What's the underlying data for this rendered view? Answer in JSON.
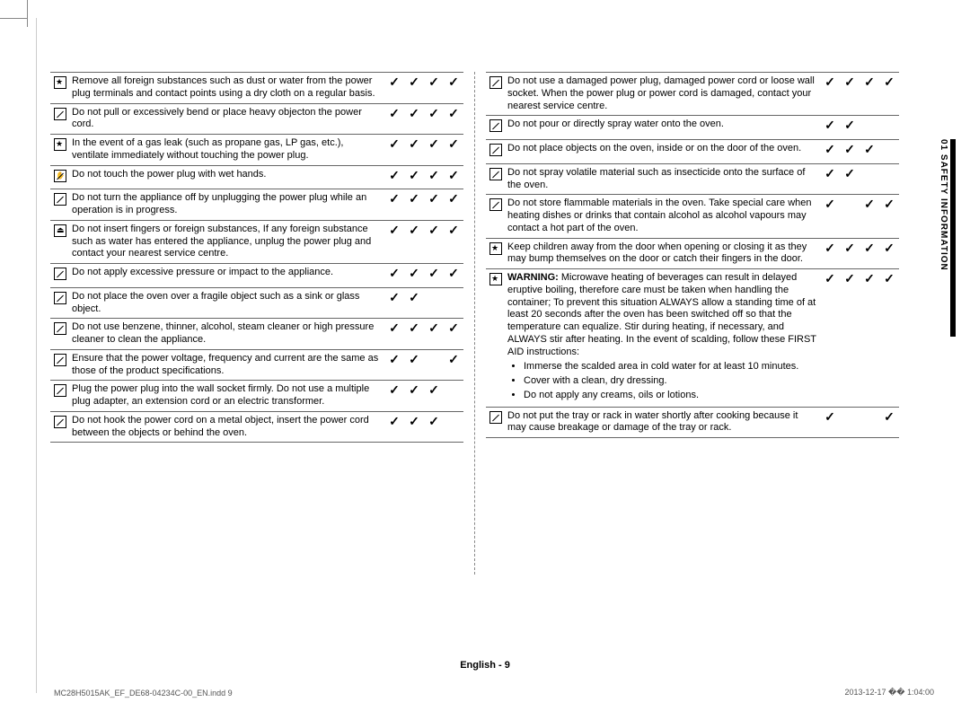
{
  "side_label": "01  SAFETY INFORMATION",
  "footer_center": "English - 9",
  "footer_left": "MC28H5015AK_EF_DE68-04234C-00_EN.indd   9",
  "footer_right": "2013-12-17   �� 1:04:00",
  "left_rows": [
    {
      "icon": "star",
      "text": "Remove all foreign substances such as dust or water from the power plug terminals and contact points using a dry cloth on a regular basis.",
      "c": [
        true,
        true,
        true,
        true
      ]
    },
    {
      "icon": "slash",
      "text": "Do not pull or excessively bend or place heavy objecton the power cord.",
      "c": [
        true,
        true,
        true,
        true
      ]
    },
    {
      "icon": "star",
      "text": "In the event of a gas leak (such as propane gas, LP gas, etc.), ventilate immediately without touching the power plug.",
      "c": [
        true,
        true,
        true,
        true
      ]
    },
    {
      "icon": "hand",
      "text": "Do not touch the power plug with wet hands.",
      "c": [
        true,
        true,
        true,
        true
      ]
    },
    {
      "icon": "slash",
      "text": "Do not turn the appliance off by unplugging the power plug while an operation is in progress.",
      "c": [
        true,
        true,
        true,
        true
      ]
    },
    {
      "icon": "unplug",
      "text": "Do not insert fingers or foreign substances, If any foreign substance such as water has entered the appliance, unplug the power plug and contact your nearest service centre.",
      "c": [
        true,
        true,
        true,
        true
      ]
    },
    {
      "icon": "slash",
      "text": "Do not apply excessive pressure or impact to the appliance.",
      "c": [
        true,
        true,
        true,
        true
      ]
    },
    {
      "icon": "slash",
      "text": "Do not place the oven over a fragile object such as a sink or glass object.",
      "c": [
        true,
        true,
        false,
        false
      ]
    },
    {
      "icon": "slash",
      "text": "Do not use benzene, thinner, alcohol, steam cleaner or high pressure cleaner to clean the appliance.",
      "c": [
        true,
        true,
        true,
        true
      ]
    },
    {
      "icon": "slash",
      "text": "Ensure that the power voltage, frequency and current are the same as those of the product specifications.",
      "c": [
        true,
        true,
        false,
        true
      ]
    },
    {
      "icon": "slash",
      "text": "Plug the power plug into the wall socket firmly. Do not use a multiple plug adapter, an extension cord or an electric transformer.",
      "c": [
        true,
        true,
        true,
        false
      ]
    },
    {
      "icon": "slash",
      "text": "Do not hook the power cord on a metal object, insert the power cord between the objects or behind the oven.",
      "c": [
        true,
        true,
        true,
        false
      ]
    }
  ],
  "right_rows": [
    {
      "icon": "slash",
      "text": "Do not use a damaged power plug, damaged power cord or loose wall socket. When the power plug or power cord is damaged, contact your nearest service centre.",
      "c": [
        true,
        true,
        true,
        true
      ]
    },
    {
      "icon": "slash",
      "text": "Do not pour or directly spray water onto the oven.",
      "c": [
        true,
        true,
        false,
        false
      ]
    },
    {
      "icon": "slash",
      "text": "Do not place objects on the oven, inside or on the door of the oven.",
      "c": [
        true,
        true,
        true,
        false
      ]
    },
    {
      "icon": "slash",
      "text": "Do not spray volatile material such as insecticide onto the surface of the oven.",
      "c": [
        true,
        true,
        false,
        false
      ]
    },
    {
      "icon": "slash",
      "text": "Do not store flammable materials in the oven. Take special care when heating dishes or drinks that contain alcohol as alcohol vapours may contact a hot part of the oven.",
      "c": [
        true,
        false,
        true,
        true
      ]
    },
    {
      "icon": "star",
      "text": "Keep children away from the door when opening or closing it as they may bump themselves on the door or catch their fingers in the door.",
      "c": [
        true,
        true,
        true,
        true
      ]
    },
    {
      "icon": "star",
      "type": "warning",
      "c": [
        true,
        true,
        true,
        true
      ],
      "warning_label": "WARNING:",
      "warning_text": " Microwave heating of beverages can result in delayed eruptive boiling, therefore care must be taken when handling the container; To prevent this situation ALWAYS allow a standing time of at least 20 seconds after the oven has been switched off so that the temperature can equalize. Stir during heating, if necessary, and ALWAYS stir after heating. In the event of scalding, follow these FIRST AID instructions:",
      "bullets": [
        "Immerse the scalded area in cold water for at least 10 minutes.",
        "Cover with a clean, dry dressing.",
        "Do not apply any creams, oils or lotions."
      ]
    },
    {
      "icon": "slash",
      "text": "Do not put the tray or rack in water shortly after cooking because it may cause breakage or damage of the tray or rack.",
      "c": [
        true,
        false,
        false,
        true
      ]
    }
  ]
}
